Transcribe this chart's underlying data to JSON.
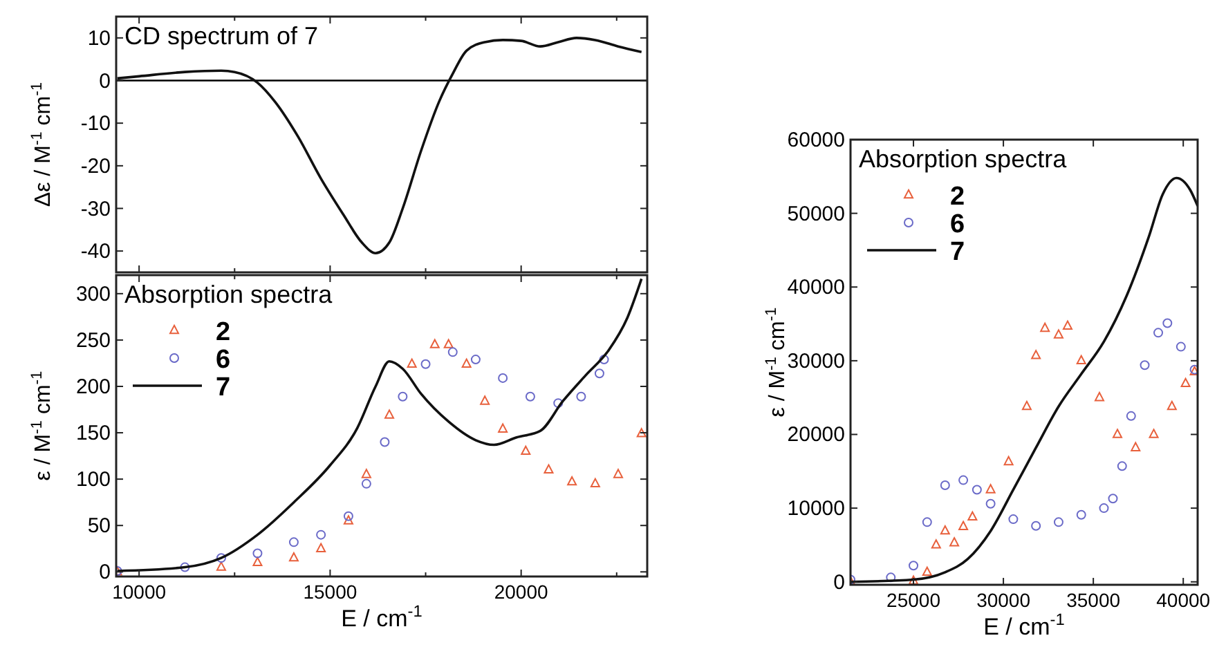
{
  "chart_data": [
    {
      "type": "line",
      "annotations": [
        "CD spectrum of 7"
      ],
      "ylabel": "Δε / M$^{-1}$ cm$^{-1}$",
      "xlim": [
        9400,
        23300
      ],
      "ylim": [
        -45,
        15
      ],
      "xticks": [
        10000,
        {
          "value": 12500,
          "label": null
        },
        15000,
        {
          "value": 17500,
          "label": null
        },
        20000,
        {
          "value": 22500,
          "label": null
        }
      ],
      "yticks": [
        -40,
        -30,
        -20,
        -10,
        0,
        10
      ],
      "tick_labels": "y",
      "ref_lines": [
        {
          "axis": "y",
          "value": 0,
          "color": "#000000"
        }
      ],
      "series": [
        {
          "color": "#111111",
          "x": [
            9430,
            10000,
            11200,
            12150,
            12500,
            13100,
            13560,
            14150,
            14760,
            15350,
            15830,
            16190,
            16550,
            16900,
            17380,
            17850,
            18210,
            18570,
            19050,
            19520,
            20000,
            20500,
            20970,
            21450,
            21940,
            22540,
            23150
          ],
          "values": [
            0.5,
            1,
            2,
            2.3,
            2,
            -0.5,
            -5,
            -13,
            -23,
            -31.5,
            -38,
            -40.5,
            -38,
            -30,
            -16.5,
            -5,
            1.6,
            7,
            9,
            9.5,
            9.3,
            8,
            9,
            10,
            9.5,
            8,
            6.7
          ]
        }
      ]
    },
    {
      "type": "line",
      "title": "Absorption spectra",
      "xlabel": "E / cm$^{-1}$",
      "ylabel": "ε / M$^{-1}$ cm$^{-1}$",
      "xlim": [
        9400,
        23300
      ],
      "ylim": [
        -5,
        320
      ],
      "xticks": [
        10000,
        {
          "value": 12500,
          "label": null
        },
        15000,
        {
          "value": 17500,
          "label": null
        },
        20000,
        {
          "value": 22500,
          "label": null
        }
      ],
      "yticks": [
        0,
        50,
        100,
        150,
        200,
        250,
        300
      ],
      "legend": "top left",
      "series": [
        {
          "name": "2",
          "type": "scatter",
          "marker": "triangle",
          "color": "#e8603c",
          "x": [
            9430,
            12150,
            13100,
            14050,
            14760,
            15480,
            15950,
            16550,
            17140,
            17740,
            18100,
            18570,
            19050,
            19520,
            20120,
            20720,
            21330,
            21940,
            22540,
            23150
          ],
          "values": [
            0,
            5,
            10,
            15,
            25,
            55,
            105,
            169,
            224,
            245,
            245,
            224,
            184,
            154,
            130,
            110,
            97,
            95,
            105,
            149
          ]
        },
        {
          "name": "6",
          "type": "scatter",
          "marker": "circle",
          "color": "#6a6ac8",
          "x": [
            9430,
            11200,
            12150,
            13100,
            14050,
            14760,
            15480,
            15950,
            16430,
            16900,
            17500,
            18210,
            18810,
            19520,
            20240,
            20970,
            21570,
            22050,
            22170
          ],
          "values": [
            1,
            5,
            15,
            20,
            32,
            40,
            60,
            95,
            140,
            189,
            224,
            237,
            229,
            209,
            189,
            182,
            189,
            214,
            229
          ]
        },
        {
          "name": "7",
          "color": "#111111",
          "x": [
            9430,
            11200,
            12150,
            13100,
            14050,
            15000,
            15710,
            16190,
            16550,
            16900,
            17380,
            18100,
            18810,
            19290,
            19880,
            20500,
            21090,
            21690,
            22290,
            22780,
            23150
          ],
          "values": [
            1,
            5,
            15,
            40,
            75,
            115,
            155,
            200,
            227,
            219,
            192,
            162,
            142,
            137,
            145,
            152,
            184,
            212,
            239,
            274,
            316
          ]
        }
      ]
    },
    {
      "type": "line",
      "title": "Absorption spectra",
      "xlabel": "E / cm$^{-1}$",
      "ylabel": "ε / M$^{-1}$ cm$^{-1}$",
      "xlim": [
        21500,
        40800
      ],
      "ylim": [
        -400,
        60000
      ],
      "xticks": [
        25000,
        30000,
        35000,
        40000
      ],
      "yticks": [
        0,
        10000,
        20000,
        30000,
        40000,
        50000,
        60000
      ],
      "legend": "top left",
      "series": [
        {
          "name": "2",
          "type": "scatter",
          "marker": "triangle",
          "color": "#e8603c",
          "x": [
            21500,
            25000,
            25760,
            26260,
            26760,
            27270,
            27770,
            28280,
            29290,
            30290,
            31300,
            31810,
            32310,
            33070,
            33570,
            34330,
            35340,
            36340,
            37350,
            38360,
            39370,
            40130,
            40630
          ],
          "values": [
            0,
            100,
            1300,
            5000,
            6900,
            5300,
            7500,
            8800,
            12500,
            16300,
            23800,
            30700,
            34400,
            33500,
            34700,
            30000,
            25000,
            20000,
            18200,
            20000,
            23800,
            26900,
            28500
          ]
        },
        {
          "name": "6",
          "type": "scatter",
          "marker": "circle",
          "color": "#6a6ac8",
          "x": [
            21500,
            23740,
            25000,
            25760,
            26760,
            27770,
            28530,
            29290,
            30550,
            31810,
            33070,
            34330,
            35590,
            36090,
            36600,
            37100,
            37860,
            38610,
            39120,
            39870,
            40630
          ],
          "values": [
            300,
            600,
            2200,
            8100,
            13100,
            13800,
            12500,
            10600,
            8500,
            7600,
            8100,
            9100,
            10000,
            11300,
            15700,
            22500,
            29400,
            33800,
            35100,
            31900,
            28800
          ]
        },
        {
          "name": "7",
          "color": "#111111",
          "x": [
            21500,
            25000,
            26760,
            28020,
            29290,
            30550,
            31810,
            33070,
            34330,
            35590,
            36850,
            38110,
            38860,
            39620,
            40380,
            40800
          ],
          "values": [
            0,
            300,
            1300,
            3100,
            6900,
            12500,
            18200,
            23800,
            28200,
            32600,
            38800,
            47000,
            52600,
            54800,
            53200,
            51000
          ]
        }
      ]
    }
  ]
}
